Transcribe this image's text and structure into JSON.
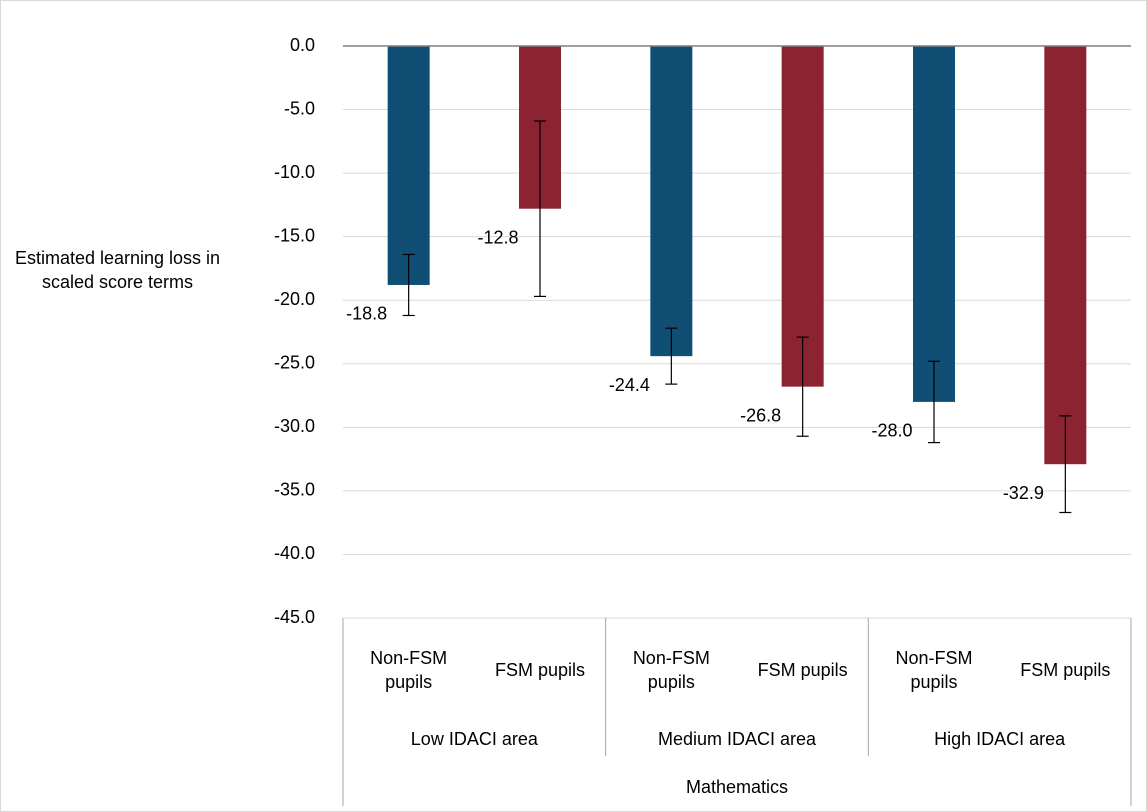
{
  "chart_data": {
    "type": "bar",
    "y_axis_title": "Estimated learning loss in scaled score terms",
    "categories": [
      "Non-FSM pupils",
      "FSM pupils",
      "Non-FSM pupils",
      "FSM pupils",
      "Non-FSM pupils",
      "FSM pupils"
    ],
    "groups": [
      "Low IDACI area",
      "Medium IDACI area",
      "High IDACI area"
    ],
    "supergroup": "Mathematics",
    "values": [
      -18.8,
      -12.8,
      -24.4,
      -26.8,
      -28.0,
      -32.9
    ],
    "value_labels": [
      "-18.8",
      "-12.8",
      "-24.4",
      "-26.8",
      "-28.0",
      "-32.9"
    ],
    "errors": [
      2.4,
      6.9,
      2.2,
      3.9,
      3.2,
      3.8
    ],
    "colors": [
      "#104e74",
      "#8b2331",
      "#104e74",
      "#8b2331",
      "#104e74",
      "#8b2331"
    ],
    "ylim": [
      -45,
      0
    ],
    "yticks": [
      {
        "value": 0,
        "label": "0.0"
      },
      {
        "value": -5,
        "label": "-5.0"
      },
      {
        "value": -10,
        "label": "-10.0"
      },
      {
        "value": -15,
        "label": "-15.0"
      },
      {
        "value": -20,
        "label": "-20.0"
      },
      {
        "value": -25,
        "label": "-25.0"
      },
      {
        "value": -30,
        "label": "-30.0"
      },
      {
        "value": -35,
        "label": "-35.0"
      },
      {
        "value": -40,
        "label": "-40.0"
      },
      {
        "value": -45,
        "label": "-45.0"
      }
    ],
    "grid": true
  }
}
